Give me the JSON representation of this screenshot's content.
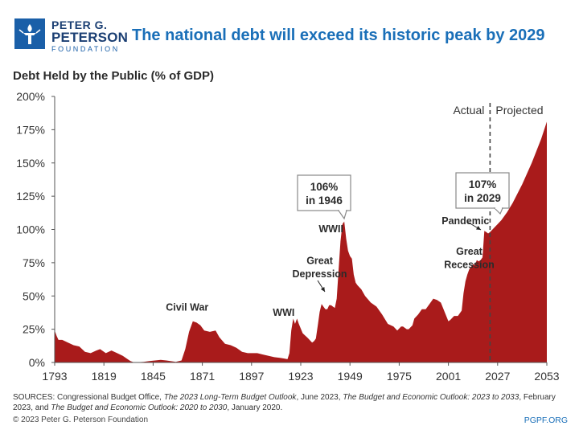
{
  "branding": {
    "line1": "PETER G.",
    "line2": "PETERSON",
    "line3": "FOUNDATION",
    "logo_icon": "torch-icon",
    "brand_color": "#1a5fa8"
  },
  "header": {
    "title": "The national debt will exceed its historic peak by 2029"
  },
  "chart_data": {
    "type": "area",
    "title": "The national debt will exceed its historic peak by 2029",
    "ylabel": "Debt Held by the Public (% of GDP)",
    "xlabel": "",
    "xlim": [
      1793,
      2053
    ],
    "ylim": [
      0,
      200
    ],
    "grid": false,
    "fill_color": "#a91b1b",
    "x_ticks": [
      "1793",
      "1819",
      "1845",
      "1871",
      "1897",
      "1923",
      "1949",
      "1975",
      "2001",
      "2027",
      "2053"
    ],
    "y_ticks": [
      "0%",
      "25%",
      "50%",
      "75%",
      "100%",
      "125%",
      "150%",
      "175%",
      "200%"
    ],
    "series": [
      {
        "values": [
          [
            1793,
            24
          ],
          [
            1794,
            20
          ],
          [
            1795,
            17
          ],
          [
            1797,
            17
          ],
          [
            1800,
            15
          ],
          [
            1803,
            13
          ],
          [
            1806,
            12
          ],
          [
            1809,
            8
          ],
          [
            1812,
            7
          ],
          [
            1815,
            9
          ],
          [
            1817,
            10
          ],
          [
            1820,
            7
          ],
          [
            1823,
            9
          ],
          [
            1826,
            7
          ],
          [
            1829,
            5
          ],
          [
            1831,
            3
          ],
          [
            1833,
            1
          ],
          [
            1835,
            0
          ],
          [
            1840,
            0.5
          ],
          [
            1843,
            1
          ],
          [
            1846,
            1.5
          ],
          [
            1849,
            2
          ],
          [
            1852,
            1.5
          ],
          [
            1857,
            0.5
          ],
          [
            1860,
            1.5
          ],
          [
            1862,
            10
          ],
          [
            1864,
            23
          ],
          [
            1866,
            31
          ],
          [
            1868,
            30
          ],
          [
            1870,
            28
          ],
          [
            1872,
            24
          ],
          [
            1875,
            23
          ],
          [
            1878,
            24
          ],
          [
            1880,
            19
          ],
          [
            1883,
            14
          ],
          [
            1886,
            13
          ],
          [
            1889,
            11
          ],
          [
            1892,
            8
          ],
          [
            1895,
            7
          ],
          [
            1898,
            7
          ],
          [
            1900,
            7
          ],
          [
            1903,
            6
          ],
          [
            1906,
            5
          ],
          [
            1909,
            4
          ],
          [
            1912,
            3.5
          ],
          [
            1914,
            3
          ],
          [
            1916,
            2.5
          ],
          [
            1917,
            7
          ],
          [
            1918,
            24
          ],
          [
            1919,
            33
          ],
          [
            1920,
            29
          ],
          [
            1921,
            33
          ],
          [
            1922,
            29
          ],
          [
            1924,
            22
          ],
          [
            1927,
            18
          ],
          [
            1929,
            15
          ],
          [
            1930,
            16
          ],
          [
            1931,
            18
          ],
          [
            1932,
            28
          ],
          [
            1933,
            38
          ],
          [
            1934,
            44
          ],
          [
            1935,
            42
          ],
          [
            1936,
            40
          ],
          [
            1937,
            40
          ],
          [
            1938,
            43
          ],
          [
            1939,
            43
          ],
          [
            1940,
            42
          ],
          [
            1941,
            41
          ],
          [
            1942,
            48
          ],
          [
            1943,
            70
          ],
          [
            1944,
            91
          ],
          [
            1945,
            104
          ],
          [
            1946,
            106
          ],
          [
            1947,
            93
          ],
          [
            1948,
            84
          ],
          [
            1949,
            80
          ],
          [
            1950,
            78
          ],
          [
            1951,
            66
          ],
          [
            1952,
            60
          ],
          [
            1953,
            58
          ],
          [
            1955,
            55
          ],
          [
            1957,
            50
          ],
          [
            1960,
            45
          ],
          [
            1963,
            42
          ],
          [
            1966,
            36
          ],
          [
            1969,
            29
          ],
          [
            1972,
            27
          ],
          [
            1974,
            24
          ],
          [
            1976,
            27
          ],
          [
            1977,
            27
          ],
          [
            1979,
            25
          ],
          [
            1980,
            25
          ],
          [
            1982,
            28
          ],
          [
            1983,
            33
          ],
          [
            1985,
            36
          ],
          [
            1987,
            40
          ],
          [
            1989,
            40
          ],
          [
            1991,
            44
          ],
          [
            1993,
            48
          ],
          [
            1995,
            47
          ],
          [
            1997,
            45
          ],
          [
            1999,
            38
          ],
          [
            2001,
            31
          ],
          [
            2002,
            32
          ],
          [
            2004,
            35
          ],
          [
            2006,
            35
          ],
          [
            2008,
            39
          ],
          [
            2009,
            52
          ],
          [
            2010,
            61
          ],
          [
            2011,
            66
          ],
          [
            2012,
            70
          ],
          [
            2013,
            72
          ],
          [
            2014,
            74
          ],
          [
            2015,
            73
          ],
          [
            2016,
            77
          ],
          [
            2017,
            76
          ],
          [
            2018,
            77
          ],
          [
            2019,
            79
          ],
          [
            2020,
            99
          ],
          [
            2021,
            98
          ],
          [
            2022,
            97
          ],
          [
            2023,
            98
          ],
          [
            2025,
            101
          ],
          [
            2027,
            104
          ],
          [
            2029,
            107
          ],
          [
            2032,
            113
          ],
          [
            2035,
            120
          ],
          [
            2040,
            134
          ],
          [
            2045,
            150
          ],
          [
            2050,
            168
          ],
          [
            2053,
            181
          ]
        ]
      }
    ],
    "divider": {
      "x": 2023,
      "left_label": "Actual",
      "right_label": "Projected"
    },
    "annotations": [
      {
        "id": "civil-war",
        "text": "Civil War",
        "x": 1863,
        "y": 39
      },
      {
        "id": "wwi",
        "text": "WWI",
        "x": 1914,
        "y": 35
      },
      {
        "id": "great-depression-1",
        "text": "Great",
        "x": 1933,
        "y": 74
      },
      {
        "id": "great-depression-2",
        "text": "Depression",
        "x": 1933,
        "y": 64
      },
      {
        "id": "wwii",
        "text": "WWII",
        "x": 1939,
        "y": 98
      },
      {
        "id": "great-recession-1",
        "text": "Great",
        "x": 2012,
        "y": 81
      },
      {
        "id": "great-recession-2",
        "text": "Recession",
        "x": 2012,
        "y": 71
      },
      {
        "id": "pandemic",
        "text": "Pandemic",
        "x": 2010,
        "y": 104
      }
    ],
    "callouts": [
      {
        "id": "peak-1946",
        "line1": "106%",
        "line2": "in 1946"
      },
      {
        "id": "peak-2029",
        "line1": "107%",
        "line2": "in 2029"
      }
    ]
  },
  "sources": {
    "text_prefix": "SOURCES: Congressional Budget Office, ",
    "title1": "The 2023 Long-Term Budget Outlook",
    "text_mid1": ", June 2023, ",
    "title2": "The Budget and Economic Outlook: 2023 to 2033",
    "text_mid2": ", February 2023, and ",
    "title3": "The Budget and Economic Outlook: 2020 to 2030",
    "text_suffix": ", January 2020."
  },
  "footer": {
    "copyright": "© 2023 Peter G. Peterson Foundation",
    "site": "PGPF.ORG"
  }
}
